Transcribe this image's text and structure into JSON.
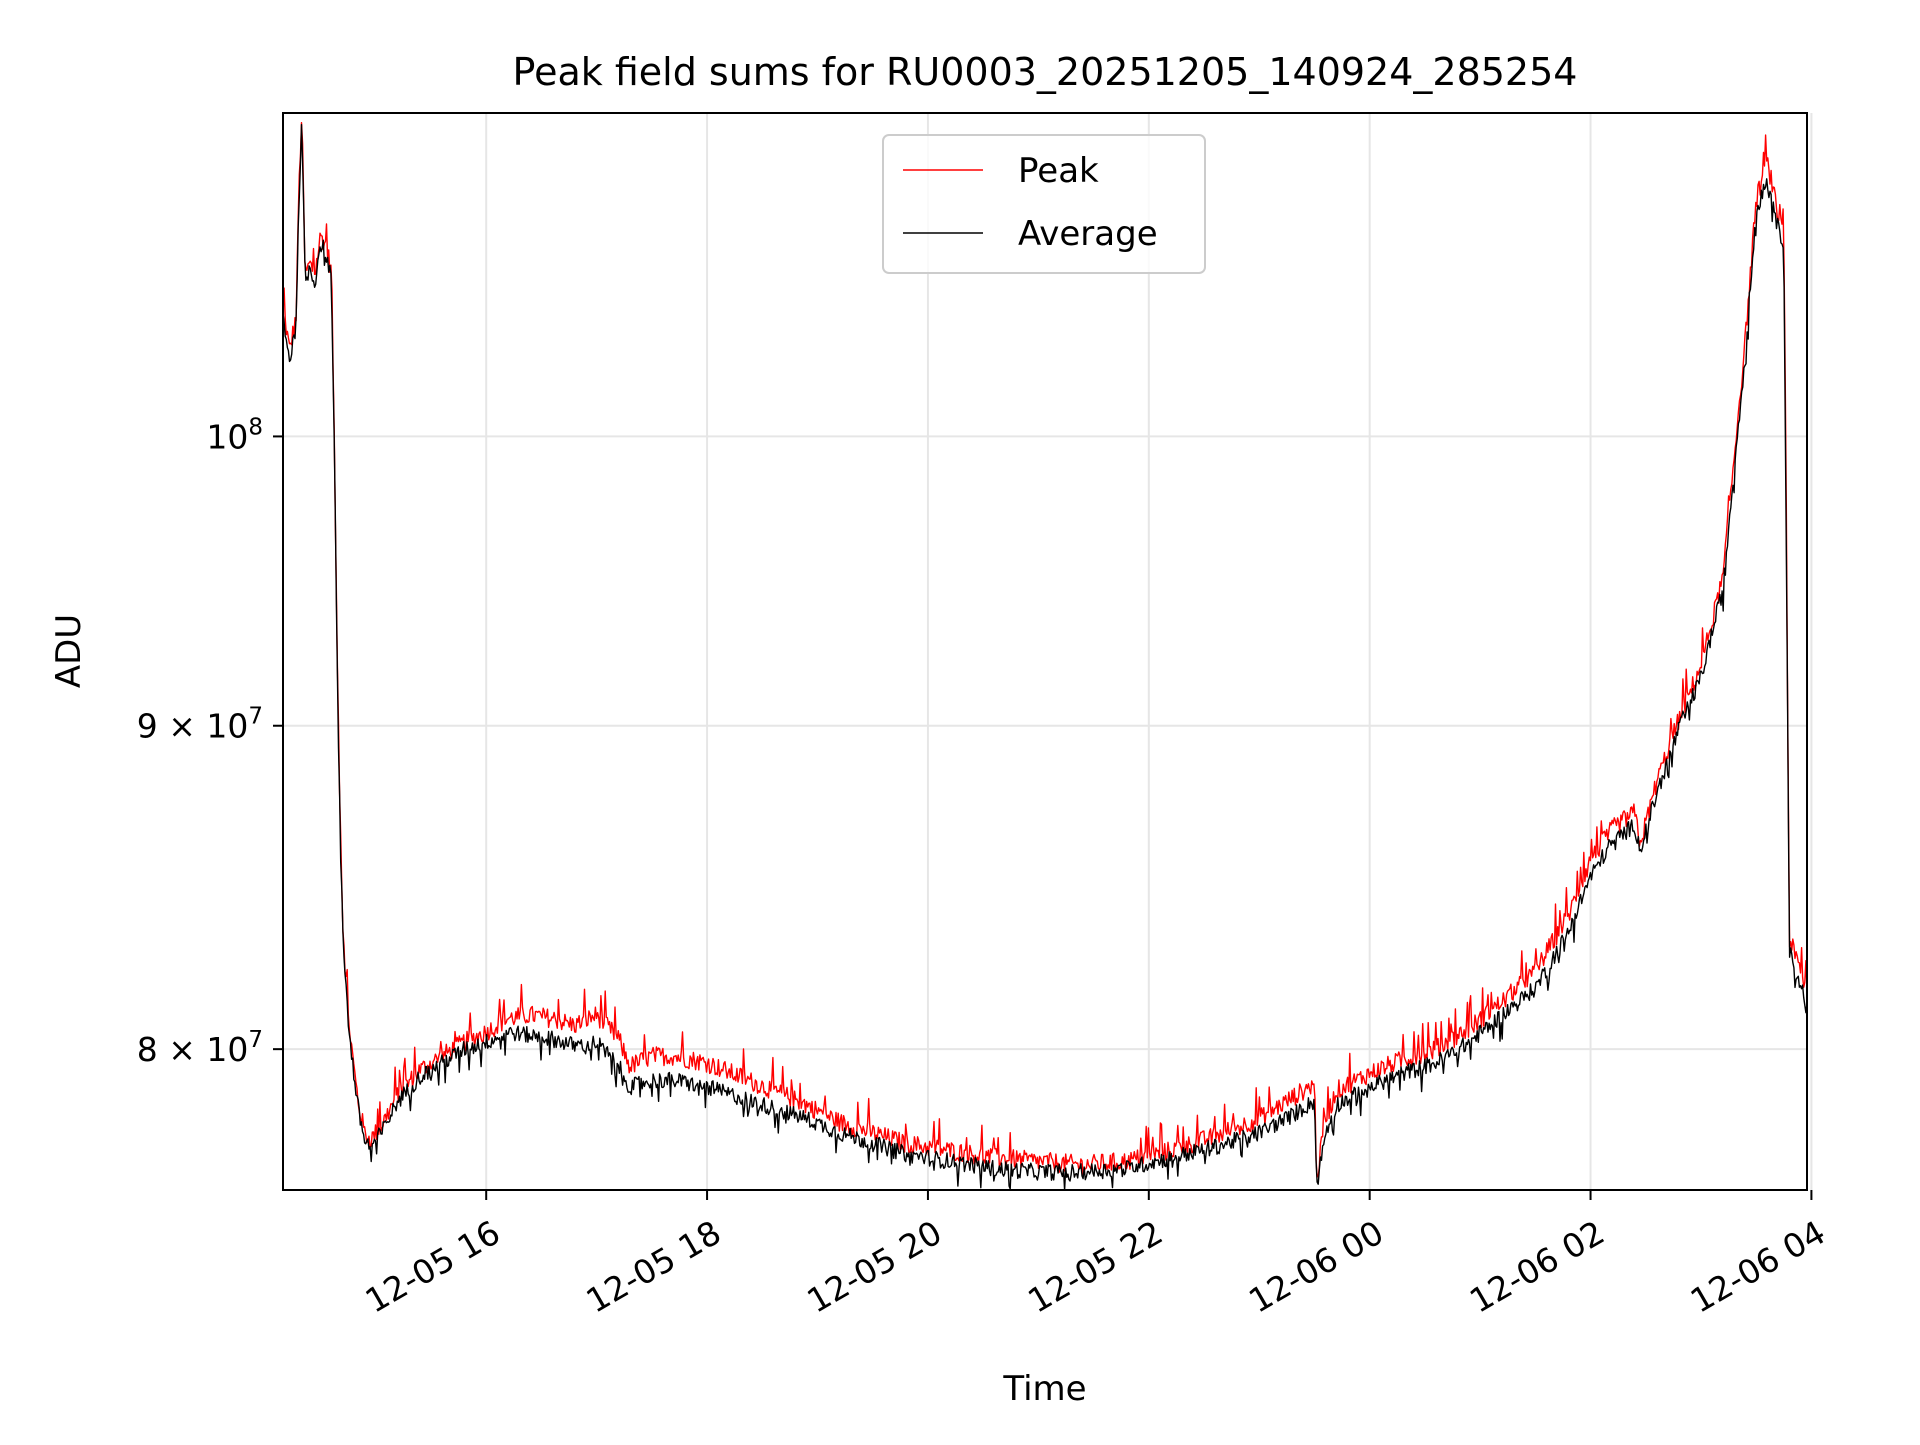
{
  "chart_data": {
    "type": "line",
    "title": "Peak field sums for RU0003_20251205_140924_285254",
    "xlabel": "Time",
    "ylabel": "ADU",
    "yscale": "log",
    "xlim_hours": [
      14.16,
      27.96
    ],
    "ylim": [
      76000000,
      112500000
    ],
    "grid": true,
    "legend_position": "upper-center",
    "x_ticks": [
      {
        "label": "12-05 16",
        "hour": 16
      },
      {
        "label": "12-05 18",
        "hour": 18
      },
      {
        "label": "12-05 20",
        "hour": 20
      },
      {
        "label": "12-05 22",
        "hour": 22
      },
      {
        "label": "12-06 00",
        "hour": 24
      },
      {
        "label": "12-06 02",
        "hour": 26
      },
      {
        "label": "12-06 04",
        "hour": 28
      }
    ],
    "y_ticks": [
      {
        "base": "10",
        "exp": "8",
        "coef": "",
        "value": 100000000
      },
      {
        "base": "10",
        "exp": "7",
        "coef": "9 × ",
        "value": 90000000
      },
      {
        "base": "10",
        "exp": "7",
        "coef": "8 × ",
        "value": 80000000
      }
    ],
    "x_points_hours": [
      14.16,
      14.22,
      14.28,
      14.3,
      14.33,
      14.36,
      14.4,
      14.45,
      14.5,
      14.55,
      14.6,
      14.66,
      14.7,
      14.75,
      14.8,
      14.85,
      14.9,
      14.95,
      15.05,
      15.2,
      15.4,
      15.6,
      15.8,
      16.0,
      16.2,
      16.4,
      16.6,
      16.8,
      17.0,
      17.2,
      17.3,
      17.5,
      17.7,
      18.0,
      18.3,
      18.6,
      18.9,
      19.2,
      19.5,
      19.8,
      20.2,
      20.6,
      21.0,
      21.4,
      21.8,
      22.2,
      22.6,
      23.0,
      23.3,
      23.5,
      23.52,
      23.6,
      23.7,
      24.0,
      24.3,
      24.6,
      24.9,
      25.2,
      25.5,
      25.8,
      26.0,
      26.2,
      26.4,
      26.45,
      26.6,
      26.8,
      27.0,
      27.2,
      27.4,
      27.5,
      27.6,
      27.65,
      27.7,
      27.75,
      27.8,
      27.9,
      27.96
    ],
    "series": [
      {
        "name": "Peak",
        "color": "#ff0000",
        "values": [
          104800000,
          103200000,
          104500000,
          108800000,
          112500000,
          106000000,
          106500000,
          106100000,
          107600000,
          107200000,
          106200000,
          90000000,
          83800000,
          81000000,
          79500000,
          78300000,
          77600000,
          77400000,
          77800000,
          78700000,
          79400000,
          79800000,
          80200000,
          80500000,
          80900000,
          81000000,
          80900000,
          80700000,
          81000000,
          80300000,
          79500000,
          79800000,
          79800000,
          79600000,
          79200000,
          78800000,
          78400000,
          77900000,
          77600000,
          77300000,
          77100000,
          76900000,
          76800000,
          76700000,
          76800000,
          77100000,
          77500000,
          78000000,
          78600000,
          79000000,
          76300000,
          78000000,
          78800000,
          79300000,
          79700000,
          80000000,
          80600000,
          81400000,
          82300000,
          84000000,
          85700000,
          86700000,
          87200000,
          86200000,
          88200000,
          90200000,
          92000000,
          95000000,
          103500000,
          109000000,
          110500000,
          109500000,
          108200000,
          107800000,
          83300000,
          82300000,
          81700000
        ]
      },
      {
        "name": "Average",
        "color": "#000000",
        "values": [
          104500000,
          102800000,
          104200000,
          108500000,
          112000000,
          105800000,
          106300000,
          105800000,
          107300000,
          106900000,
          105900000,
          89800000,
          83600000,
          80800000,
          79300000,
          78100000,
          77400000,
          77200000,
          77600000,
          78500000,
          79200000,
          79600000,
          80000000,
          80200000,
          80500000,
          80400000,
          80300000,
          80100000,
          80200000,
          79500000,
          78900000,
          79100000,
          79100000,
          78900000,
          78600000,
          78300000,
          78000000,
          77600000,
          77300000,
          77000000,
          76800000,
          76600000,
          76500000,
          76500000,
          76600000,
          76900000,
          77200000,
          77600000,
          78100000,
          78500000,
          76100000,
          77600000,
          78400000,
          78900000,
          79300000,
          79600000,
          80200000,
          81000000,
          81800000,
          83500000,
          85200000,
          86300000,
          86800000,
          86000000,
          87800000,
          89900000,
          91600000,
          94600000,
          103000000,
          108500000,
          110000000,
          109000000,
          107800000,
          107300000,
          82900000,
          81900000,
          81300000
        ]
      }
    ]
  }
}
